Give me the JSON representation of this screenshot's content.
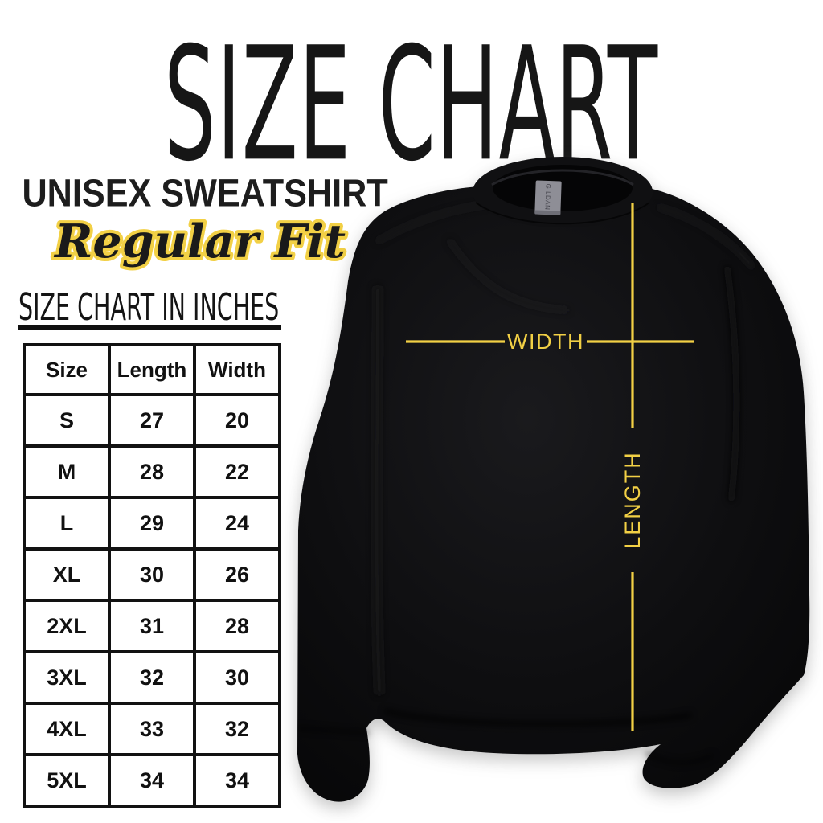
{
  "title": "SIZE CHART",
  "subtitle": {
    "line1": "UNISEX SWEATSHIRT",
    "line2": "Regular Fit"
  },
  "section": {
    "heading": "SIZE CHART IN INCHES"
  },
  "chart_data": {
    "type": "table",
    "title": "SIZE CHART",
    "subtitle": "UNISEX SWEATSHIRT — Regular Fit",
    "units": "inches",
    "columns": [
      "Size",
      "Length",
      "Width"
    ],
    "rows": [
      [
        "S",
        "27",
        "20"
      ],
      [
        "M",
        "28",
        "22"
      ],
      [
        "L",
        "29",
        "24"
      ],
      [
        "XL",
        "30",
        "26"
      ],
      [
        "2XL",
        "31",
        "28"
      ],
      [
        "3XL",
        "32",
        "30"
      ],
      [
        "4XL",
        "33",
        "32"
      ],
      [
        "5XL",
        "34",
        "34"
      ]
    ],
    "annotations": [
      "WIDTH",
      "LENGTH"
    ]
  },
  "diagram": {
    "width_label": "WIDTH",
    "length_label": "LENGTH",
    "collar_tag": "GILDAN",
    "annotation_color": "#F2D045",
    "garment_color": "#0B0B0D",
    "background_color": "#FFFFFF"
  }
}
